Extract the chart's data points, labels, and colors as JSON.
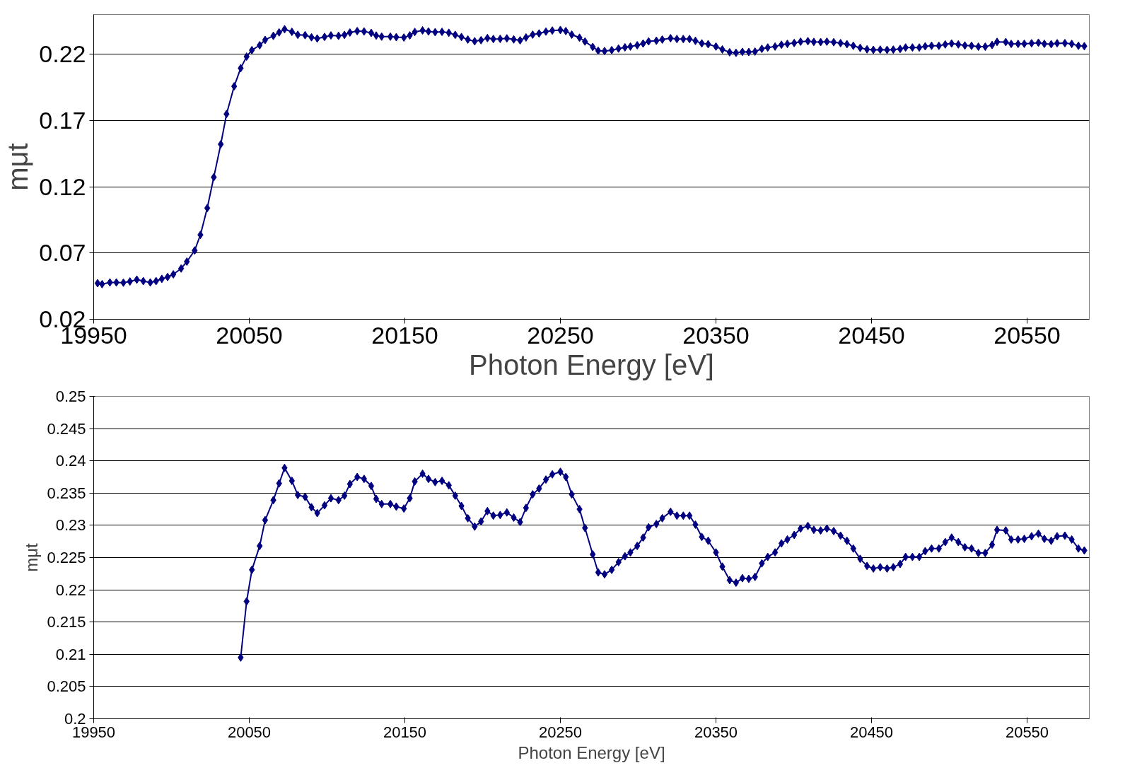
{
  "chart_data": [
    {
      "type": "line",
      "xlabel": "Photon Energy [eV]",
      "ylabel": "mμt",
      "xlim": [
        19950,
        20590
      ],
      "ylim": [
        0.02,
        0.25
      ],
      "xticks": [
        19950,
        20050,
        20150,
        20250,
        20350,
        20450,
        20550
      ],
      "yticks": [
        0.02,
        0.07,
        0.12,
        0.17,
        0.22
      ],
      "grid": "y",
      "marker": "diamond",
      "line_style": "solid",
      "x": [
        19952.5,
        19955.4,
        19960.4,
        19964.6,
        19969.1,
        19973.3,
        19977.7,
        19981.9,
        19986.4,
        19990.1,
        19993.8,
        19997.5,
        20001.2,
        20006.2,
        20009.9,
        20014.9,
        20018.6,
        20023.0,
        20027.2,
        20031.7,
        20035.4,
        20040.3,
        20044.5,
        20048.3,
        20051.7,
        20056.7,
        20060.2,
        20065.5,
        20069.2,
        20072.7,
        20077.4,
        20081.2,
        20085.9,
        20090.0,
        20093.7,
        20098.4,
        20102.5,
        20107.4,
        20111.2,
        20114.7,
        20119.4,
        20123.8,
        20128.4,
        20131.6,
        20135.1,
        20140.7,
        20144.5,
        20149.4,
        20153.2,
        20156.4,
        20161.4,
        20165.2,
        20169.5,
        20173.9,
        20178.3,
        20182.4,
        20186.4,
        20190.5,
        20194.9,
        20199.0,
        20203.1,
        20206.9,
        20211.3,
        20215.6,
        20220.0,
        20224.1,
        20227.9,
        20232.2,
        20236.3,
        20240.7,
        20244.8,
        20250.0,
        20253.5,
        20257.3,
        20262.3,
        20265.8,
        20270.8,
        20274.3,
        20278.4,
        20283.0,
        20287.4,
        20291.5,
        20295.0,
        20299.4,
        20303.2,
        20306.7,
        20311.7,
        20315.5,
        20320.8,
        20324.9,
        20329.0,
        20333.0,
        20336.8,
        20340.9,
        20345.0,
        20350.0,
        20354.1,
        20358.8,
        20362.9,
        20367.0,
        20371.1,
        20375.1,
        20379.5,
        20383.3,
        20388.0,
        20392.1,
        20395.9,
        20400.3,
        20404.4,
        20409.1,
        20412.9,
        20417.3,
        20421.3,
        20425.7,
        20430.1,
        20434.2,
        20438.3,
        20442.7,
        20447.1,
        20451.2,
        20455.6,
        20460.0,
        20464.0,
        20468.4,
        20471.9,
        20476.3,
        20480.7,
        20484.5,
        20488.6,
        20493.3,
        20497.4,
        20501.5,
        20505.8,
        20510.0,
        20514.3,
        20518.7,
        20523.1,
        20527.5,
        20530.7,
        20536.3,
        20539.8,
        20544.2,
        20548.2,
        20552.9,
        20557.3,
        20561.1,
        20565.5,
        20569.3,
        20574.3,
        20578.7,
        20583.0,
        20586.8
      ],
      "series": [
        {
          "color": "#000080",
          "values": [
            0.0472,
            0.0465,
            0.0478,
            0.0478,
            0.0476,
            0.0485,
            0.0499,
            0.0488,
            0.0478,
            0.0488,
            0.0505,
            0.0519,
            0.0539,
            0.0583,
            0.0635,
            0.0719,
            0.0837,
            0.1039,
            0.1272,
            0.1521,
            0.1749,
            0.1958,
            0.2095,
            0.2182,
            0.2231,
            0.2268,
            0.2308,
            0.2339,
            0.2365,
            0.2389,
            0.2369,
            0.2347,
            0.2344,
            0.2328,
            0.2319,
            0.2331,
            0.2342,
            0.2339,
            0.2346,
            0.2364,
            0.2375,
            0.2372,
            0.2361,
            0.2341,
            0.2333,
            0.2333,
            0.2329,
            0.2326,
            0.2342,
            0.2368,
            0.238,
            0.2372,
            0.2367,
            0.2369,
            0.2362,
            0.2346,
            0.233,
            0.2311,
            0.2298,
            0.2306,
            0.2322,
            0.2315,
            0.2316,
            0.232,
            0.2312,
            0.2305,
            0.2327,
            0.2348,
            0.2357,
            0.2371,
            0.2379,
            0.2383,
            0.2375,
            0.2348,
            0.2325,
            0.2296,
            0.2255,
            0.2227,
            0.2224,
            0.2231,
            0.2243,
            0.2252,
            0.2258,
            0.2268,
            0.2281,
            0.2297,
            0.2302,
            0.2311,
            0.2321,
            0.2315,
            0.2315,
            0.2315,
            0.2301,
            0.2282,
            0.2276,
            0.2258,
            0.2236,
            0.2215,
            0.2211,
            0.2218,
            0.2217,
            0.222,
            0.2241,
            0.2251,
            0.2258,
            0.2272,
            0.2278,
            0.2285,
            0.2295,
            0.2299,
            0.2293,
            0.2292,
            0.2295,
            0.2291,
            0.2284,
            0.2276,
            0.2264,
            0.2248,
            0.2237,
            0.2233,
            0.2235,
            0.2233,
            0.2235,
            0.224,
            0.2251,
            0.2251,
            0.2251,
            0.226,
            0.2264,
            0.2264,
            0.2274,
            0.2281,
            0.2274,
            0.2266,
            0.2264,
            0.2257,
            0.2257,
            0.227,
            0.2293,
            0.2292,
            0.2278,
            0.2278,
            0.2279,
            0.2283,
            0.2287,
            0.2279,
            0.2276,
            0.2283,
            0.2284,
            0.2278,
            0.2264,
            0.2261
          ]
        }
      ]
    },
    {
      "type": "line",
      "xlabel": "Photon Energy [eV]",
      "ylabel": "mμt",
      "xlim": [
        19950,
        20590
      ],
      "ylim": [
        0.2,
        0.25
      ],
      "xticks": [
        19950,
        20050,
        20150,
        20250,
        20350,
        20450,
        20550
      ],
      "yticks": [
        0.2,
        0.205,
        0.21,
        0.215,
        0.22,
        0.225,
        0.23,
        0.235,
        0.24,
        0.245,
        0.25
      ],
      "grid": "y",
      "marker": "diamond",
      "line_style": "solid",
      "x": [
        20044.5,
        20048.3,
        20051.7,
        20056.7,
        20060.2,
        20065.5,
        20069.2,
        20072.7,
        20077.4,
        20081.2,
        20085.9,
        20090.0,
        20093.7,
        20098.4,
        20102.5,
        20107.4,
        20111.2,
        20114.7,
        20119.4,
        20123.8,
        20128.4,
        20131.6,
        20135.1,
        20140.7,
        20144.5,
        20149.4,
        20153.2,
        20156.4,
        20161.4,
        20165.2,
        20169.5,
        20173.9,
        20178.3,
        20182.4,
        20186.4,
        20190.5,
        20194.9,
        20199.0,
        20203.1,
        20206.9,
        20211.3,
        20215.6,
        20220.0,
        20224.1,
        20227.9,
        20232.2,
        20236.3,
        20240.7,
        20244.8,
        20250.0,
        20253.5,
        20257.3,
        20262.3,
        20265.8,
        20270.8,
        20274.3,
        20278.4,
        20283.0,
        20287.4,
        20291.5,
        20295.0,
        20299.4,
        20303.2,
        20306.7,
        20311.7,
        20315.5,
        20320.8,
        20324.9,
        20329.0,
        20333.0,
        20336.8,
        20340.9,
        20345.0,
        20350.0,
        20354.1,
        20358.8,
        20362.9,
        20367.0,
        20371.1,
        20375.1,
        20379.5,
        20383.3,
        20388.0,
        20392.1,
        20395.9,
        20400.3,
        20404.4,
        20409.1,
        20412.9,
        20417.3,
        20421.3,
        20425.7,
        20430.1,
        20434.2,
        20438.3,
        20442.7,
        20447.1,
        20451.2,
        20455.6,
        20460.0,
        20464.0,
        20468.4,
        20471.9,
        20476.3,
        20480.7,
        20484.5,
        20488.6,
        20493.3,
        20497.4,
        20501.5,
        20505.8,
        20510.0,
        20514.3,
        20518.7,
        20523.1,
        20527.5,
        20530.7,
        20536.3,
        20539.8,
        20544.2,
        20548.2,
        20552.9,
        20557.3,
        20561.1,
        20565.5,
        20569.3,
        20574.3,
        20578.7,
        20583.0,
        20586.8
      ],
      "series": [
        {
          "color": "#000080",
          "values": [
            0.2095,
            0.2182,
            0.2231,
            0.2268,
            0.2308,
            0.2339,
            0.2365,
            0.2389,
            0.2369,
            0.2347,
            0.2344,
            0.2328,
            0.2319,
            0.2331,
            0.2342,
            0.2339,
            0.2346,
            0.2364,
            0.2375,
            0.2372,
            0.2361,
            0.2341,
            0.2333,
            0.2333,
            0.2329,
            0.2326,
            0.2342,
            0.2368,
            0.238,
            0.2372,
            0.2367,
            0.2369,
            0.2362,
            0.2346,
            0.233,
            0.2311,
            0.2298,
            0.2306,
            0.2322,
            0.2315,
            0.2316,
            0.232,
            0.2312,
            0.2305,
            0.2327,
            0.2348,
            0.2357,
            0.2371,
            0.2379,
            0.2383,
            0.2375,
            0.2348,
            0.2325,
            0.2296,
            0.2255,
            0.2227,
            0.2224,
            0.2231,
            0.2243,
            0.2252,
            0.2258,
            0.2268,
            0.2281,
            0.2297,
            0.2302,
            0.2311,
            0.2321,
            0.2315,
            0.2315,
            0.2315,
            0.2301,
            0.2282,
            0.2276,
            0.2258,
            0.2236,
            0.2215,
            0.2211,
            0.2218,
            0.2217,
            0.222,
            0.2241,
            0.2251,
            0.2258,
            0.2272,
            0.2278,
            0.2285,
            0.2295,
            0.2299,
            0.2293,
            0.2292,
            0.2295,
            0.2291,
            0.2284,
            0.2276,
            0.2264,
            0.2248,
            0.2237,
            0.2233,
            0.2235,
            0.2233,
            0.2235,
            0.224,
            0.2251,
            0.2251,
            0.2251,
            0.226,
            0.2264,
            0.2264,
            0.2274,
            0.2281,
            0.2274,
            0.2266,
            0.2264,
            0.2257,
            0.2257,
            0.227,
            0.2293,
            0.2292,
            0.2278,
            0.2278,
            0.2279,
            0.2283,
            0.2287,
            0.2279,
            0.2276,
            0.2283,
            0.2284,
            0.2278,
            0.2264,
            0.2261
          ]
        }
      ]
    }
  ]
}
